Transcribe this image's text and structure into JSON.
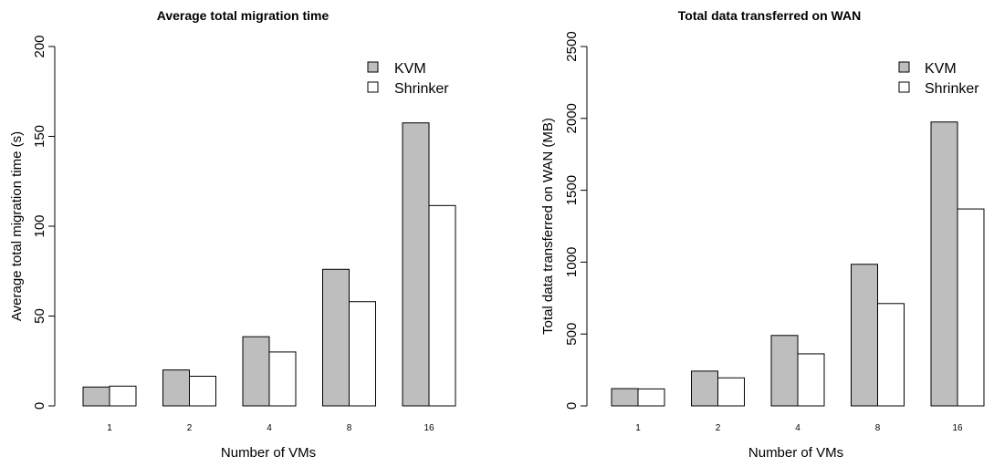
{
  "chart_data": [
    {
      "type": "bar",
      "title": "Average total migration time",
      "xlabel": "Number of VMs",
      "ylabel": "Average total migration time (s)",
      "categories": [
        "1",
        "2",
        "4",
        "8",
        "16"
      ],
      "ylim": [
        0,
        200
      ],
      "yticks": [
        "0",
        "50",
        "100",
        "150",
        "200"
      ],
      "legend_position": "top-right",
      "series": [
        {
          "name": "KVM",
          "color": "#bebebe",
          "values": [
            10.5,
            20,
            38.5,
            76,
            157.5
          ]
        },
        {
          "name": "Shrinker",
          "color": "#ffffff",
          "values": [
            11,
            16.5,
            30,
            58,
            111.5
          ]
        }
      ]
    },
    {
      "type": "bar",
      "title": "Total data transferred on WAN",
      "xlabel": "Number of VMs",
      "ylabel": "Total data transferred on WAN (MB)",
      "categories": [
        "1",
        "2",
        "4",
        "8",
        "16"
      ],
      "ylim": [
        0,
        2500
      ],
      "yticks": [
        "0",
        "500",
        "1000",
        "1500",
        "2000",
        "2500"
      ],
      "legend_position": "top-right",
      "series": [
        {
          "name": "KVM",
          "color": "#bebebe",
          "values": [
            120,
            242,
            490,
            985,
            1975
          ]
        },
        {
          "name": "Shrinker",
          "color": "#ffffff",
          "values": [
            118,
            195,
            362,
            712,
            1370
          ]
        }
      ]
    }
  ]
}
